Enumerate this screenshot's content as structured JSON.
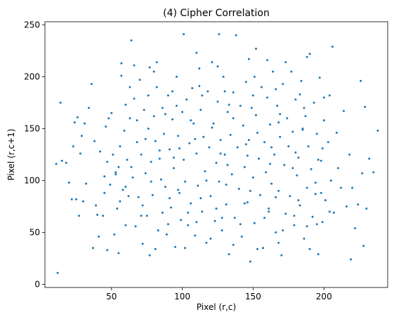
{
  "chart_data": {
    "type": "scatter",
    "title": "(4) Cipher Correlation",
    "xlabel": "Pixel (r,c)",
    "ylabel": "Pixel (r,c+1)",
    "xlim": [
      3,
      245
    ],
    "ylim": [
      -3,
      253
    ],
    "xticks": [
      50,
      100,
      150,
      200
    ],
    "yticks": [
      0,
      50,
      100,
      150,
      200,
      250
    ],
    "grid": false,
    "legend": "none",
    "series": [
      {
        "color": "#1f77b4",
        "points": [
          [
            12,
            11
          ],
          [
            11,
            116
          ],
          [
            14,
            175
          ],
          [
            15,
            119
          ],
          [
            18,
            117
          ],
          [
            20,
            98
          ],
          [
            22,
            82
          ],
          [
            23,
            133
          ],
          [
            24,
            156
          ],
          [
            25,
            82
          ],
          [
            26,
            161
          ],
          [
            27,
            66
          ],
          [
            28,
            126
          ],
          [
            29,
            143
          ],
          [
            30,
            80
          ],
          [
            31,
            155
          ],
          [
            32,
            97
          ],
          [
            34,
            170
          ],
          [
            36,
            193
          ],
          [
            37,
            35
          ],
          [
            38,
            138
          ],
          [
            39,
            76
          ],
          [
            40,
            67
          ],
          [
            41,
            46
          ],
          [
            42,
            128
          ],
          [
            44,
            66
          ],
          [
            45,
            104
          ],
          [
            45,
            88
          ],
          [
            46,
            152
          ],
          [
            47,
            118
          ],
          [
            47,
            33
          ],
          [
            48,
            160
          ],
          [
            49,
            96
          ],
          [
            50,
            165
          ],
          [
            51,
            125
          ],
          [
            52,
            48
          ],
          [
            53,
            108
          ],
          [
            54,
            73
          ],
          [
            55,
            113
          ],
          [
            55,
            30
          ],
          [
            56,
            133
          ],
          [
            57,
            201
          ],
          [
            58,
            91
          ],
          [
            59,
            148
          ],
          [
            60,
            173
          ],
          [
            60,
            57
          ],
          [
            61,
            120
          ],
          [
            62,
            85
          ],
          [
            63,
            160
          ],
          [
            64,
            235
          ],
          [
            65,
            103
          ],
          [
            66,
            179
          ],
          [
            67,
            56
          ],
          [
            68,
            137
          ],
          [
            69,
            84
          ],
          [
            70,
            197
          ],
          [
            71,
            125
          ],
          [
            72,
            39
          ],
          [
            73,
            168
          ],
          [
            74,
            107
          ],
          [
            75,
            66
          ],
          [
            76,
            150
          ],
          [
            77,
            209
          ],
          [
            77,
            28
          ],
          [
            78,
            118
          ],
          [
            79,
            86
          ],
          [
            80,
            162
          ],
          [
            81,
            138
          ],
          [
            82,
            190
          ],
          [
            83,
            52
          ],
          [
            84,
            121
          ],
          [
            85,
            101
          ],
          [
            86,
            170
          ],
          [
            86,
            69
          ],
          [
            87,
            145
          ],
          [
            88,
            94
          ],
          [
            89,
            48
          ],
          [
            90,
            182
          ],
          [
            91,
            130
          ],
          [
            92,
            74
          ],
          [
            93,
            159
          ],
          [
            94,
            112
          ],
          [
            95,
            36
          ],
          [
            96,
            200
          ],
          [
            97,
            143
          ],
          [
            98,
            88
          ],
          [
            99,
            62
          ],
          [
            100,
            166
          ],
          [
            101,
            241
          ],
          [
            101,
            120
          ],
          [
            102,
            99
          ],
          [
            103,
            178
          ],
          [
            104,
            57
          ],
          [
            105,
            136
          ],
          [
            106,
            78
          ],
          [
            107,
            189
          ],
          [
            108,
            155
          ],
          [
            109,
            47
          ],
          [
            110,
            126
          ],
          [
            111,
            95
          ],
          [
            112,
            208
          ],
          [
            113,
            168
          ],
          [
            114,
            70
          ],
          [
            115,
            142
          ],
          [
            116,
            109
          ],
          [
            117,
            40
          ],
          [
            118,
            186
          ],
          [
            119,
            132
          ],
          [
            120,
            85
          ],
          [
            121,
            214
          ],
          [
            122,
            155
          ],
          [
            123,
            61
          ],
          [
            124,
            117
          ],
          [
            125,
            176
          ],
          [
            126,
            241
          ],
          [
            126,
            99
          ],
          [
            127,
            139
          ],
          [
            128,
            52
          ],
          [
            129,
            200
          ],
          [
            130,
            125
          ],
          [
            131,
            77
          ],
          [
            132,
            166
          ],
          [
            133,
            29
          ],
          [
            134,
            144
          ],
          [
            135,
            106
          ],
          [
            136,
            185
          ],
          [
            137,
            64
          ],
          [
            138,
            240
          ],
          [
            139,
            132
          ],
          [
            140,
            92
          ],
          [
            141,
            172
          ],
          [
            142,
            46
          ],
          [
            143,
            153
          ],
          [
            144,
            113
          ],
          [
            145,
            195
          ],
          [
            146,
            79
          ],
          [
            147,
            139
          ],
          [
            148,
            22
          ],
          [
            149,
            170
          ],
          [
            150,
            103
          ],
          [
            151,
            59
          ],
          [
            152,
            227
          ],
          [
            153,
            146
          ],
          [
            154,
            121
          ],
          [
            155,
            86
          ],
          [
            156,
            190
          ],
          [
            157,
            35
          ],
          [
            158,
            137
          ],
          [
            159,
            108
          ],
          [
            160,
            180
          ],
          [
            161,
            70
          ],
          [
            162,
            154
          ],
          [
            163,
            97
          ],
          [
            164,
            205
          ],
          [
            165,
            125
          ],
          [
            166,
            50
          ],
          [
            167,
            172
          ],
          [
            168,
            90
          ],
          [
            169,
            142
          ],
          [
            170,
            28
          ],
          [
            171,
            193
          ],
          [
            172,
            115
          ],
          [
            173,
            68
          ],
          [
            174,
            160
          ],
          [
            175,
            133
          ],
          [
            176,
            85
          ],
          [
            177,
            205
          ],
          [
            178,
            147
          ],
          [
            179,
            57
          ],
          [
            180,
            178
          ],
          [
            181,
            105
          ],
          [
            182,
            122
          ],
          [
            183,
            76
          ],
          [
            184,
            196
          ],
          [
            185,
            150
          ],
          [
            186,
            44
          ],
          [
            187,
            162
          ],
          [
            188,
            93
          ],
          [
            189,
            133
          ],
          [
            190,
            222
          ],
          [
            191,
            111
          ],
          [
            192,
            65
          ],
          [
            193,
            175
          ],
          [
            194,
            87
          ],
          [
            195,
            145
          ],
          [
            196,
            29
          ],
          [
            197,
            199
          ],
          [
            198,
            119
          ],
          [
            199,
            60
          ],
          [
            200,
            158
          ],
          [
            201,
            81
          ],
          [
            203,
            137
          ],
          [
            205,
            100
          ],
          [
            206,
            229
          ],
          [
            207,
            69
          ],
          [
            209,
            146
          ],
          [
            210,
            112
          ],
          [
            212,
            93
          ],
          [
            214,
            167
          ],
          [
            216,
            75
          ],
          [
            218,
            125
          ],
          [
            219,
            24
          ],
          [
            220,
            93
          ],
          [
            222,
            54
          ],
          [
            224,
            77
          ],
          [
            226,
            196
          ],
          [
            227,
            107
          ],
          [
            228,
            37
          ],
          [
            229,
            171
          ],
          [
            230,
            73
          ],
          [
            232,
            121
          ],
          [
            235,
            108
          ],
          [
            238,
            148
          ],
          [
            57,
            213
          ],
          [
            66,
            211
          ],
          [
            82,
            214
          ],
          [
            110,
            223
          ],
          [
            125,
            210
          ],
          [
            147,
            217
          ],
          [
            160,
            216
          ],
          [
            173,
            214
          ],
          [
            188,
            219
          ],
          [
            76,
            182
          ],
          [
            93,
            186
          ],
          [
            112,
            191
          ],
          [
            130,
            186
          ],
          [
            150,
            182
          ],
          [
            166,
            188
          ],
          [
            183,
            183
          ],
          [
            200,
            180
          ],
          [
            53,
            106
          ],
          [
            64,
            113
          ],
          [
            84,
            129
          ],
          [
            98,
            131
          ],
          [
            117,
            100
          ],
          [
            132,
            115
          ],
          [
            146,
            124
          ],
          [
            162,
            116
          ],
          [
            178,
            112
          ],
          [
            194,
            98
          ],
          [
            71,
            66
          ],
          [
            90,
            58
          ],
          [
            104,
            69
          ],
          [
            124,
            73
          ],
          [
            141,
            58
          ],
          [
            158,
            64
          ],
          [
            171,
            52
          ],
          [
            188,
            56
          ],
          [
            204,
            70
          ],
          [
            81,
            34
          ],
          [
            102,
            35
          ],
          [
            120,
            44
          ],
          [
            136,
            38
          ],
          [
            153,
            34
          ],
          [
            168,
            40
          ],
          [
            190,
            34
          ],
          [
            68,
            158
          ],
          [
            88,
            164
          ],
          [
            106,
            158
          ],
          [
            121,
            151
          ],
          [
            136,
            160
          ],
          [
            152,
            163
          ],
          [
            168,
            156
          ],
          [
            185,
            149
          ],
          [
            199,
            131
          ],
          [
            60,
            94
          ],
          [
            78,
            99
          ],
          [
            97,
            91
          ],
          [
            113,
            83
          ],
          [
            131,
            96
          ],
          [
            148,
            90
          ],
          [
            166,
            84
          ],
          [
            182,
            81
          ],
          [
            198,
            88
          ],
          [
            74,
            140
          ],
          [
            94,
            122
          ],
          [
            109,
            140
          ],
          [
            127,
            126
          ],
          [
            145,
            135
          ],
          [
            163,
            132
          ],
          [
            180,
            127
          ],
          [
            196,
            120
          ],
          [
            63,
            190
          ],
          [
            80,
            205
          ],
          [
            96,
            172
          ],
          [
            114,
            182
          ],
          [
            133,
            173
          ],
          [
            151,
            200
          ],
          [
            169,
            164
          ],
          [
            186,
            170
          ],
          [
            204,
            182
          ],
          [
            56,
            80
          ],
          [
            72,
            76
          ],
          [
            91,
            83
          ],
          [
            110,
            60
          ],
          [
            128,
            64
          ],
          [
            144,
            78
          ],
          [
            161,
            73
          ],
          [
            179,
            66
          ],
          [
            195,
            58
          ]
        ]
      }
    ]
  }
}
